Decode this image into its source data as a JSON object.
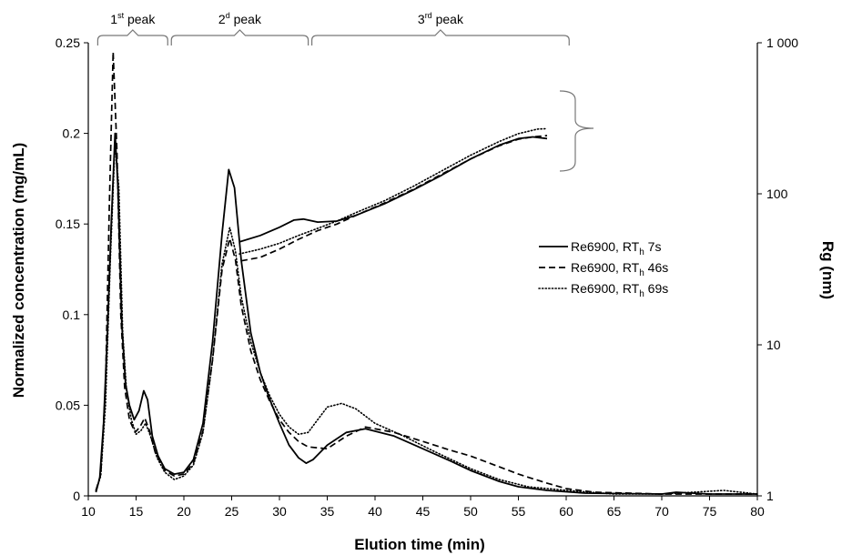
{
  "chart_data": {
    "type": "line",
    "xlabel": "Elution time (min)",
    "ylabel": "Normalized concentration (mg/mL)",
    "y2label": "Rg (nm)",
    "xlim": [
      10,
      80
    ],
    "ylim": [
      0,
      0.25
    ],
    "y2lim": [
      1,
      1000
    ],
    "y2scale": "log",
    "x_ticks": [
      "10",
      "15",
      "20",
      "25",
      "30",
      "35",
      "40",
      "45",
      "50",
      "55",
      "60",
      "65",
      "70",
      "75",
      "80"
    ],
    "y_ticks": [
      "0",
      "0.05",
      "0.1",
      "0.15",
      "0.2",
      "0.25"
    ],
    "y2_ticks": [
      "1",
      "10",
      "100",
      "1 000"
    ],
    "peaks": [
      {
        "label": "1",
        "sup": "st",
        "suffix": " peak",
        "x_start": 10.8,
        "x_end": 18.5
      },
      {
        "label": "2",
        "sup": "d",
        "suffix": " peak",
        "x_start": 18.5,
        "x_end": 33.2
      },
      {
        "label": "3",
        "sup": "rd",
        "suffix": " peak",
        "x_start": 33.2,
        "x_end": 60.5
      }
    ],
    "legend": {
      "position": "right-middle",
      "entries": [
        {
          "prefix": "Re6900, RT",
          "sub": "h",
          "suffix": " 7s",
          "style": "solid"
        },
        {
          "prefix": "Re6900, RT",
          "sub": "h",
          "suffix": " 46s",
          "style": "dashed"
        },
        {
          "prefix": "Re6900, RT",
          "sub": "h",
          "suffix": " 69s",
          "style": "dotted"
        }
      ]
    },
    "concentration_series": [
      {
        "style": "solid",
        "points": [
          [
            10.8,
            0.002
          ],
          [
            11.2,
            0.01
          ],
          [
            11.6,
            0.04
          ],
          [
            12.0,
            0.09
          ],
          [
            12.4,
            0.15
          ],
          [
            12.8,
            0.2
          ],
          [
            13.1,
            0.17
          ],
          [
            13.5,
            0.095
          ],
          [
            13.9,
            0.062
          ],
          [
            14.3,
            0.05
          ],
          [
            14.8,
            0.042
          ],
          [
            15.3,
            0.047
          ],
          [
            15.8,
            0.058
          ],
          [
            16.2,
            0.053
          ],
          [
            16.7,
            0.033
          ],
          [
            17.3,
            0.022
          ],
          [
            18.0,
            0.015
          ],
          [
            19.0,
            0.012
          ],
          [
            20.0,
            0.013
          ],
          [
            21.0,
            0.02
          ],
          [
            22.0,
            0.04
          ],
          [
            23.0,
            0.085
          ],
          [
            24.0,
            0.145
          ],
          [
            24.7,
            0.18
          ],
          [
            25.3,
            0.17
          ],
          [
            26.0,
            0.13
          ],
          [
            27.0,
            0.09
          ],
          [
            28.0,
            0.068
          ],
          [
            29.0,
            0.053
          ],
          [
            30.0,
            0.04
          ],
          [
            31.0,
            0.028
          ],
          [
            32.0,
            0.021
          ],
          [
            32.8,
            0.018
          ],
          [
            33.5,
            0.02
          ],
          [
            35.0,
            0.028
          ],
          [
            37.0,
            0.035
          ],
          [
            39.0,
            0.037
          ],
          [
            42.0,
            0.033
          ],
          [
            45.0,
            0.026
          ],
          [
            48.0,
            0.019
          ],
          [
            50.0,
            0.014
          ],
          [
            53.0,
            0.008
          ],
          [
            55.0,
            0.005
          ],
          [
            58.0,
            0.003
          ],
          [
            62.0,
            0.0015
          ],
          [
            70.0,
            0.001
          ],
          [
            71.5,
            0.002
          ],
          [
            75.0,
            0.001
          ],
          [
            80.0,
            0.001
          ]
        ]
      },
      {
        "style": "dashed",
        "points": [
          [
            10.8,
            0.003
          ],
          [
            11.3,
            0.012
          ],
          [
            11.8,
            0.06
          ],
          [
            12.2,
            0.16
          ],
          [
            12.6,
            0.245
          ],
          [
            13.0,
            0.19
          ],
          [
            13.4,
            0.1
          ],
          [
            13.8,
            0.06
          ],
          [
            14.3,
            0.042
          ],
          [
            14.9,
            0.035
          ],
          [
            15.4,
            0.038
          ],
          [
            15.9,
            0.043
          ],
          [
            16.4,
            0.036
          ],
          [
            17.0,
            0.024
          ],
          [
            18.0,
            0.014
          ],
          [
            19.0,
            0.011
          ],
          [
            20.0,
            0.012
          ],
          [
            21.0,
            0.018
          ],
          [
            22.0,
            0.036
          ],
          [
            23.0,
            0.075
          ],
          [
            24.0,
            0.125
          ],
          [
            24.8,
            0.142
          ],
          [
            25.4,
            0.13
          ],
          [
            26.0,
            0.105
          ],
          [
            27.0,
            0.08
          ],
          [
            28.0,
            0.064
          ],
          [
            29.0,
            0.052
          ],
          [
            30.0,
            0.042
          ],
          [
            31.0,
            0.035
          ],
          [
            32.0,
            0.03
          ],
          [
            33.0,
            0.027
          ],
          [
            35.0,
            0.026
          ],
          [
            37.0,
            0.033
          ],
          [
            39.0,
            0.038
          ],
          [
            42.0,
            0.035
          ],
          [
            45.0,
            0.03
          ],
          [
            48.0,
            0.025
          ],
          [
            50.0,
            0.022
          ],
          [
            53.0,
            0.016
          ],
          [
            55.0,
            0.012
          ],
          [
            58.0,
            0.007
          ],
          [
            60.0,
            0.004
          ],
          [
            63.0,
            0.002
          ],
          [
            70.0,
            0.001
          ],
          [
            80.0,
            0.001
          ]
        ]
      },
      {
        "style": "dotted",
        "points": [
          [
            10.8,
            0.003
          ],
          [
            11.3,
            0.011
          ],
          [
            11.8,
            0.05
          ],
          [
            12.3,
            0.13
          ],
          [
            12.8,
            0.195
          ],
          [
            13.2,
            0.17
          ],
          [
            13.6,
            0.09
          ],
          [
            14.0,
            0.058
          ],
          [
            14.5,
            0.042
          ],
          [
            15.0,
            0.034
          ],
          [
            15.5,
            0.036
          ],
          [
            16.0,
            0.04
          ],
          [
            16.5,
            0.033
          ],
          [
            17.2,
            0.021
          ],
          [
            18.0,
            0.013
          ],
          [
            19.0,
            0.009
          ],
          [
            20.0,
            0.011
          ],
          [
            21.0,
            0.017
          ],
          [
            22.0,
            0.035
          ],
          [
            23.0,
            0.075
          ],
          [
            24.0,
            0.128
          ],
          [
            24.8,
            0.148
          ],
          [
            25.4,
            0.135
          ],
          [
            26.0,
            0.11
          ],
          [
            27.0,
            0.085
          ],
          [
            28.0,
            0.068
          ],
          [
            29.0,
            0.055
          ],
          [
            30.0,
            0.045
          ],
          [
            31.0,
            0.038
          ],
          [
            32.0,
            0.034
          ],
          [
            33.0,
            0.035
          ],
          [
            34.0,
            0.042
          ],
          [
            35.0,
            0.049
          ],
          [
            36.5,
            0.051
          ],
          [
            38.0,
            0.048
          ],
          [
            40.0,
            0.04
          ],
          [
            43.0,
            0.033
          ],
          [
            46.0,
            0.025
          ],
          [
            48.0,
            0.02
          ],
          [
            50.0,
            0.015
          ],
          [
            53.0,
            0.009
          ],
          [
            56.0,
            0.005
          ],
          [
            60.0,
            0.003
          ],
          [
            65.0,
            0.001
          ],
          [
            70.0,
            0.001
          ],
          [
            76.5,
            0.003
          ],
          [
            80.0,
            0.001
          ]
        ]
      }
    ],
    "rg_series": [
      {
        "style": "solid",
        "points": [
          [
            25.8,
            48
          ],
          [
            28.0,
            53
          ],
          [
            30.0,
            60
          ],
          [
            31.5,
            67
          ],
          [
            32.5,
            68
          ],
          [
            34.0,
            65
          ],
          [
            36.0,
            66
          ],
          [
            38.0,
            72
          ],
          [
            41.0,
            86
          ],
          [
            44.0,
            106
          ],
          [
            47.0,
            133
          ],
          [
            50.0,
            170
          ],
          [
            53.0,
            210
          ],
          [
            55.0,
            232
          ],
          [
            56.5,
            238
          ],
          [
            58.0,
            232
          ]
        ]
      },
      {
        "style": "dashed",
        "points": [
          [
            26.0,
            36
          ],
          [
            28.0,
            38
          ],
          [
            30.0,
            43
          ],
          [
            32.0,
            50
          ],
          [
            34.0,
            57
          ],
          [
            36.0,
            63
          ],
          [
            38.0,
            72
          ],
          [
            41.0,
            87
          ],
          [
            44.0,
            107
          ],
          [
            47.0,
            135
          ],
          [
            50.0,
            170
          ],
          [
            53.0,
            208
          ],
          [
            55.0,
            230
          ],
          [
            56.5,
            238
          ],
          [
            58.0,
            243
          ]
        ]
      },
      {
        "style": "dotted",
        "points": [
          [
            25.8,
            40
          ],
          [
            28.0,
            43
          ],
          [
            30.0,
            47
          ],
          [
            32.0,
            53
          ],
          [
            34.0,
            59
          ],
          [
            36.0,
            66
          ],
          [
            38.0,
            75
          ],
          [
            41.0,
            90
          ],
          [
            44.0,
            112
          ],
          [
            47.0,
            142
          ],
          [
            50.0,
            180
          ],
          [
            53.0,
            222
          ],
          [
            55.0,
            250
          ],
          [
            57.0,
            268
          ],
          [
            58.0,
            270
          ]
        ]
      }
    ]
  }
}
